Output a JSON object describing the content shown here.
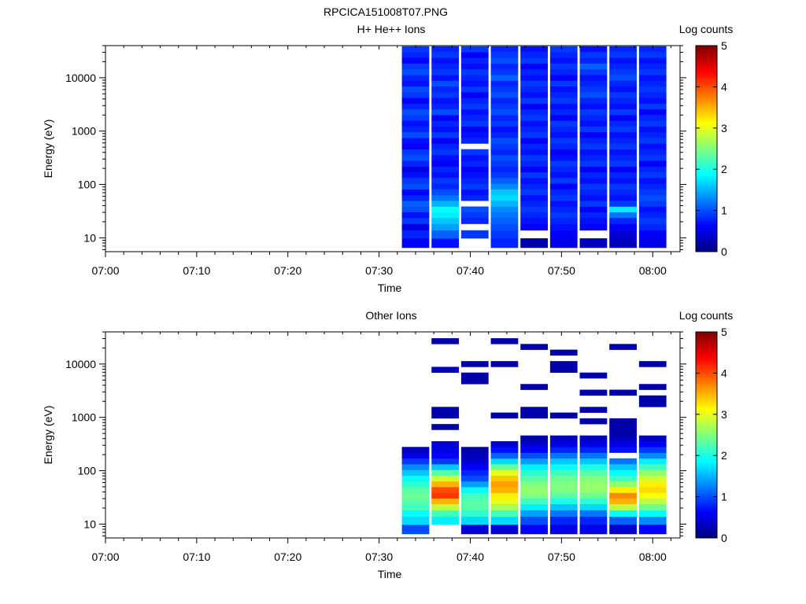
{
  "figure_title": "RPCICA151008T07.PNG",
  "chart_data": [
    {
      "type": "heatmap",
      "title": "H+ He++ Ions",
      "xlabel": "Time",
      "ylabel": "Energy (eV)",
      "yscale": "log",
      "xlim": [
        "07:00",
        "08:03"
      ],
      "ylim": [
        5.5,
        40000
      ],
      "xticks": [
        "07:00",
        "07:10",
        "07:20",
        "07:30",
        "07:40",
        "07:50",
        "08:00"
      ],
      "yticks": [
        10,
        100,
        1000,
        10000
      ],
      "ytick_labels": [
        "10",
        "100",
        "1000",
        "10000"
      ],
      "colorbar": {
        "label": "Log counts",
        "range": [
          0,
          5
        ],
        "ticks": [
          "0",
          "1",
          "2",
          "3",
          "4",
          "5"
        ],
        "colormap": "jet"
      },
      "time_bins": [
        [
          "07:32:30",
          "07:35:30"
        ],
        [
          "07:35:45",
          "07:38:45"
        ],
        [
          "07:39:00",
          "07:42:00"
        ],
        [
          "07:42:15",
          "07:45:15"
        ],
        [
          "07:45:30",
          "07:48:30"
        ],
        [
          "07:48:45",
          "07:51:45"
        ],
        [
          "07:52:00",
          "07:55:00"
        ],
        [
          "07:55:15",
          "07:58:15"
        ],
        [
          "07:58:30",
          "08:01:30"
        ]
      ],
      "energy_bins_eV": [
        8,
        12,
        16,
        21,
        27,
        34,
        44,
        56,
        72,
        92,
        118,
        151,
        193,
        247,
        316,
        405,
        518,
        663,
        849,
        1087,
        1391,
        1780,
        2278,
        2916,
        3733,
        4778,
        6116,
        7828,
        10020,
        12825,
        16416,
        21013,
        26896,
        34427
      ],
      "log_counts": [
        [
          0.6,
          0.8,
          0.5,
          0.9,
          0.7,
          1.0,
          1.1,
          0.8,
          0.6,
          1.0,
          0.9,
          0.7,
          0.5,
          0.8,
          1.0,
          0.9,
          0.6,
          0.7,
          1.0,
          0.8,
          0.7,
          0.9,
          1.0,
          0.8,
          0.6,
          0.9,
          1.0,
          0.7,
          0.8,
          1.0,
          0.9,
          0.6,
          0.8,
          0.9
        ],
        [
          0.7,
          1.1,
          1.4,
          1.6,
          1.8,
          1.9,
          1.5,
          1.2,
          1.0,
          0.8,
          0.9,
          0.7,
          0.8,
          0.6,
          0.7,
          0.9,
          0.8,
          0.6,
          0.9,
          0.7,
          0.8,
          0.6,
          1.0,
          0.8,
          0.7,
          0.9,
          0.8,
          1.0,
          0.7,
          0.9,
          0.8,
          0.7,
          0.9,
          0.8
        ],
        [
          null,
          0.9,
          null,
          0.8,
          0.9,
          1.0,
          null,
          0.8,
          0.7,
          0.9,
          0.8,
          0.7,
          0.6,
          0.8,
          0.7,
          0.9,
          null,
          0.8,
          0.7,
          0.6,
          0.9,
          0.8,
          0.7,
          0.9,
          0.8,
          0.6,
          0.9,
          0.7,
          0.8,
          0.9,
          0.7,
          0.8,
          0.6,
          0.9
        ],
        [
          0.8,
          0.9,
          1.0,
          1.1,
          1.2,
          1.3,
          1.5,
          1.7,
          1.6,
          1.3,
          1.1,
          0.9,
          0.8,
          0.9,
          1.0,
          0.8,
          0.9,
          1.0,
          0.8,
          0.7,
          0.9,
          0.8,
          1.0,
          0.9,
          0.8,
          1.0,
          0.9,
          0.8,
          1.1,
          0.9,
          0.8,
          1.0,
          0.9,
          0.8
        ],
        [
          0.2,
          null,
          0.6,
          0.7,
          0.8,
          0.9,
          0.8,
          0.7,
          0.9,
          0.8,
          0.7,
          0.9,
          0.6,
          0.8,
          0.9,
          0.7,
          0.8,
          0.6,
          0.9,
          0.8,
          0.7,
          0.9,
          0.8,
          0.6,
          0.9,
          0.7,
          0.8,
          0.9,
          0.7,
          0.8,
          0.6,
          0.9,
          0.8,
          0.7
        ],
        [
          0.5,
          0.6,
          0.7,
          0.8,
          0.9,
          0.8,
          0.7,
          0.9,
          0.8,
          0.6,
          0.9,
          0.7,
          0.8,
          0.9,
          0.7,
          0.6,
          0.8,
          0.9,
          0.7,
          0.8,
          0.9,
          0.6,
          0.8,
          0.7,
          0.9,
          0.8,
          0.7,
          0.9,
          0.6,
          0.8,
          0.9,
          0.7,
          0.8,
          0.9
        ],
        [
          0.3,
          null,
          0.6,
          0.7,
          0.8,
          0.6,
          0.9,
          0.7,
          0.8,
          0.9,
          0.7,
          0.8,
          0.6,
          0.9,
          0.8,
          0.7,
          0.9,
          0.8,
          0.6,
          0.9,
          0.7,
          0.8,
          0.9,
          0.7,
          0.8,
          1.0,
          0.9,
          0.8,
          0.7,
          0.9,
          1.1,
          0.8,
          0.9,
          0.7
        ],
        [
          0.3,
          0.4,
          0.6,
          0.8,
          1.2,
          1.8,
          0.9,
          0.7,
          0.8,
          0.9,
          0.7,
          0.8,
          0.6,
          0.9,
          0.8,
          0.7,
          0.9,
          0.8,
          0.7,
          0.9,
          0.8,
          0.6,
          0.9,
          0.7,
          0.8,
          0.9,
          0.7,
          0.8,
          1.0,
          0.9,
          0.8,
          0.7,
          0.9,
          0.8
        ],
        [
          0.5,
          0.6,
          0.8,
          0.9,
          0.8,
          0.7,
          0.9,
          1.0,
          0.9,
          0.8,
          0.7,
          0.9,
          0.8,
          0.6,
          0.9,
          0.8,
          0.7,
          0.9,
          0.8,
          0.7,
          0.9,
          0.8,
          0.6,
          0.9,
          0.7,
          0.8,
          0.9,
          0.8,
          0.7,
          0.9,
          0.8,
          0.7,
          0.9,
          0.8
        ]
      ]
    },
    {
      "type": "heatmap",
      "title": "Other Ions",
      "xlabel": "Time",
      "ylabel": "Energy (eV)",
      "yscale": "log",
      "xlim": [
        "07:00",
        "08:03"
      ],
      "ylim": [
        5.5,
        40000
      ],
      "xticks": [
        "07:00",
        "07:10",
        "07:20",
        "07:30",
        "07:40",
        "07:50",
        "08:00"
      ],
      "yticks": [
        10,
        100,
        1000,
        10000
      ],
      "ytick_labels": [
        "10",
        "100",
        "1000",
        "10000"
      ],
      "colorbar": {
        "label": "Log counts",
        "range": [
          0,
          5
        ],
        "ticks": [
          "0",
          "1",
          "2",
          "3",
          "4",
          "5"
        ],
        "colormap": "jet"
      },
      "time_bins": [
        [
          "07:32:30",
          "07:35:30"
        ],
        [
          "07:35:45",
          "07:38:45"
        ],
        [
          "07:39:00",
          "07:42:00"
        ],
        [
          "07:42:15",
          "07:45:15"
        ],
        [
          "07:45:30",
          "07:48:30"
        ],
        [
          "07:48:45",
          "07:51:45"
        ],
        [
          "07:52:00",
          "07:55:00"
        ],
        [
          "07:55:15",
          "07:58:15"
        ],
        [
          "07:58:30",
          "08:01:30"
        ]
      ],
      "energy_bins_eV": [
        8,
        12,
        16,
        21,
        27,
        34,
        44,
        56,
        72,
        92,
        118,
        151,
        193,
        247,
        316,
        405,
        518,
        663,
        849,
        1087,
        1391,
        1780,
        2278,
        2916,
        3733,
        4778,
        6116,
        7828,
        10020,
        12825,
        16416,
        21013,
        26896,
        34427
      ],
      "log_counts": [
        [
          1.0,
          1.7,
          1.9,
          2.2,
          2.3,
          2.4,
          2.3,
          2.1,
          1.9,
          1.6,
          1.3,
          0.9,
          0.5,
          0.3,
          null,
          null,
          null,
          null,
          null,
          null,
          null,
          null,
          null,
          null,
          null,
          null,
          null,
          null,
          null,
          null,
          null,
          null,
          null,
          null
        ],
        [
          null,
          1.8,
          2.2,
          2.8,
          3.5,
          4.1,
          4.0,
          3.5,
          2.9,
          2.3,
          1.6,
          0.9,
          0.6,
          0.5,
          0.4,
          null,
          null,
          0.2,
          null,
          0.2,
          0.2,
          null,
          null,
          null,
          null,
          null,
          null,
          0.3,
          null,
          null,
          null,
          null,
          0.2,
          null
        ],
        [
          0.4,
          1.7,
          2.1,
          2.3,
          2.3,
          2.2,
          1.9,
          1.4,
          1.0,
          0.8,
          0.6,
          0.4,
          0.3,
          0.2,
          null,
          null,
          null,
          null,
          null,
          null,
          null,
          null,
          null,
          null,
          null,
          0.2,
          0.2,
          null,
          0.2,
          null,
          null,
          null,
          null,
          null
        ],
        [
          0.4,
          1.7,
          2.2,
          2.7,
          3.0,
          3.2,
          3.5,
          3.6,
          3.4,
          3.0,
          2.4,
          1.7,
          1.1,
          0.7,
          0.4,
          null,
          null,
          null,
          null,
          0.2,
          null,
          null,
          null,
          null,
          null,
          null,
          null,
          null,
          0.2,
          null,
          null,
          null,
          0.2,
          null
        ],
        [
          0.6,
          1.0,
          1.4,
          1.8,
          2.2,
          2.5,
          2.6,
          2.5,
          2.3,
          2.1,
          1.8,
          1.4,
          1.0,
          0.6,
          0.4,
          0.2,
          null,
          null,
          null,
          0.2,
          0.2,
          null,
          null,
          null,
          0.2,
          null,
          null,
          null,
          null,
          null,
          null,
          0.2,
          null,
          null
        ],
        [
          0.5,
          0.8,
          1.2,
          1.6,
          2.0,
          2.3,
          2.5,
          2.5,
          2.4,
          2.2,
          1.9,
          1.6,
          1.2,
          0.8,
          0.5,
          0.3,
          null,
          null,
          null,
          0.2,
          null,
          null,
          null,
          null,
          null,
          null,
          null,
          0.2,
          0.2,
          null,
          0.2,
          null,
          null,
          null
        ],
        [
          0.5,
          0.8,
          1.2,
          1.7,
          2.1,
          2.4,
          2.6,
          2.6,
          2.5,
          2.3,
          2.0,
          1.6,
          1.2,
          0.8,
          0.5,
          0.3,
          null,
          null,
          0.2,
          null,
          0.2,
          null,
          null,
          0.2,
          null,
          null,
          0.2,
          null,
          null,
          null,
          null,
          null,
          null,
          null
        ],
        [
          0.4,
          1.1,
          1.9,
          2.8,
          3.5,
          3.7,
          3.2,
          2.6,
          2.2,
          1.9,
          1.6,
          1.2,
          null,
          0.7,
          0.5,
          0.3,
          0.2,
          0.2,
          0.2,
          null,
          null,
          null,
          null,
          0.2,
          null,
          null,
          null,
          null,
          null,
          null,
          null,
          0.2,
          null,
          null
        ],
        [
          0.6,
          1.3,
          1.9,
          2.4,
          2.8,
          3.1,
          3.3,
          3.2,
          2.9,
          2.6,
          2.2,
          1.8,
          1.3,
          0.9,
          0.6,
          0.3,
          null,
          null,
          null,
          null,
          null,
          0.2,
          0.2,
          null,
          0.2,
          null,
          null,
          null,
          0.2,
          null,
          null,
          null,
          null,
          null
        ]
      ]
    }
  ]
}
